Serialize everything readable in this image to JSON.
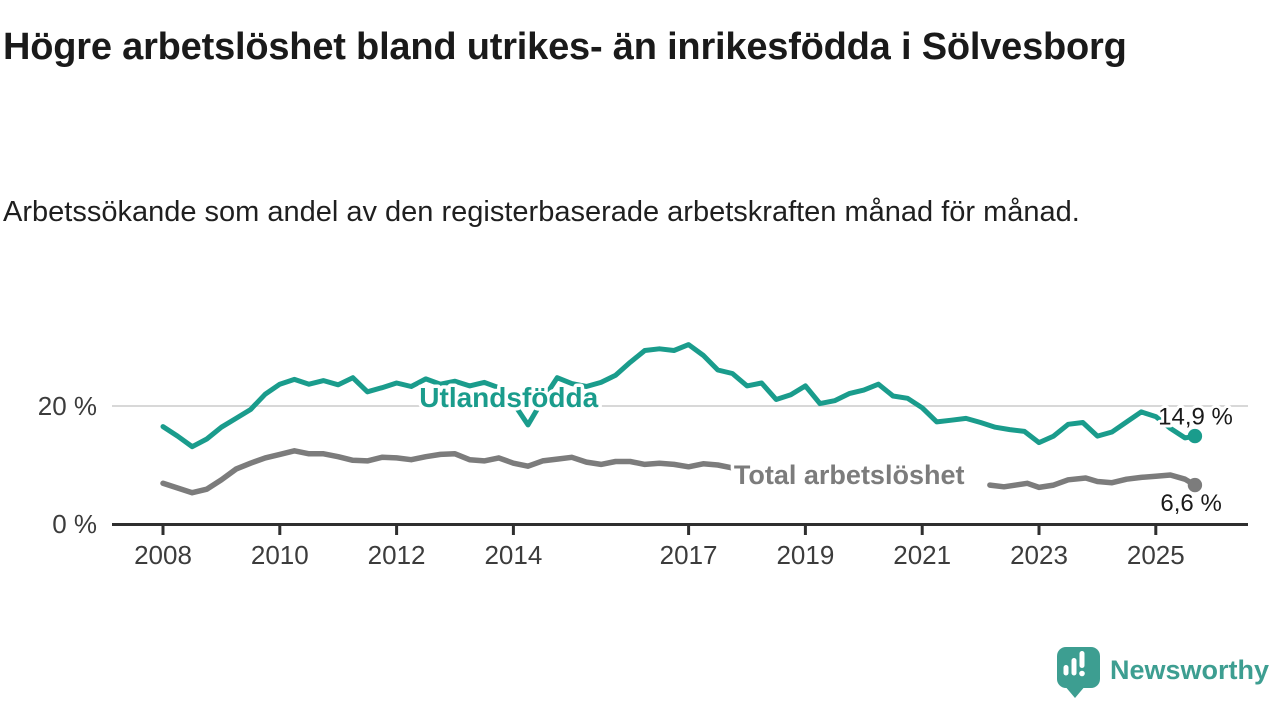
{
  "title": "Högre arbetslöshet bland utrikes- än inrikesfödda i Sölvesborg",
  "subtitle": "Arbetssökande som andel av den registerbaserade arbetskraften månad för månad.",
  "branding": {
    "logo_text": "Newsworthy",
    "logo_icon": "bar-chart-speech-bubble"
  },
  "colors": {
    "accent_teal": "#1a9c8c",
    "line_gray": "#7c7c7c",
    "axis": "#2f2f2f",
    "grid": "#cccccc",
    "chart_text": "#3c3c3c",
    "value_label": "#1a1a1a",
    "brand_teal": "#3d9e91"
  },
  "chart_data": {
    "type": "line",
    "title": "Högre arbetslöshet bland utrikes- än inrikesfödda i Sölvesborg",
    "subtitle": "Arbetssökande som andel av den registerbaserade arbetskraften månad för månad.",
    "grid": "single horizontal gridline at 20 %",
    "legend_position": "inline labels on lines",
    "x_range_years": [
      2007.13,
      2026.57
    ],
    "x_axis": {
      "ticks": [
        {
          "year": 2008,
          "label": "2008"
        },
        {
          "year": 2010,
          "label": "2010"
        },
        {
          "year": 2012,
          "label": "2012"
        },
        {
          "year": 2014,
          "label": "2014"
        },
        {
          "year": 2017,
          "label": "2017"
        },
        {
          "year": 2019,
          "label": "2019"
        },
        {
          "year": 2021,
          "label": "2021"
        },
        {
          "year": 2023,
          "label": "2023"
        },
        {
          "year": 2025,
          "label": "2025"
        }
      ]
    },
    "y_axis": {
      "unit": "%",
      "range": [
        0,
        32
      ],
      "ticks": [
        {
          "value": 20,
          "label": "20 %"
        },
        {
          "value": 0,
          "label": "0 %"
        }
      ]
    },
    "series": [
      {
        "name": "Utlandsfödda",
        "color": "#1a9c8c",
        "stroke_width": 5,
        "end_value": 14.9,
        "name_label": {
          "text": "Utlandsfödda",
          "year": 2013.92,
          "value": 19.8,
          "anchor": "middle",
          "font_size": 28
        },
        "end_label": {
          "text": "14,9 %",
          "year": 2026.32,
          "value": 16.9,
          "anchor": "end",
          "font_size": 24
        },
        "segments": [
          [
            [
              2008.0,
              16.5
            ],
            [
              2008.25,
              14.9
            ],
            [
              2008.5,
              13.1
            ],
            [
              2008.75,
              14.4
            ],
            [
              2009.0,
              16.4
            ],
            [
              2009.25,
              17.9
            ],
            [
              2009.5,
              19.4
            ],
            [
              2009.75,
              22.0
            ],
            [
              2010.0,
              23.7
            ],
            [
              2010.25,
              24.5
            ],
            [
              2010.5,
              23.7
            ],
            [
              2010.75,
              24.3
            ],
            [
              2011.0,
              23.6
            ],
            [
              2011.25,
              24.8
            ],
            [
              2011.5,
              22.4
            ],
            [
              2011.75,
              23.1
            ],
            [
              2012.0,
              23.9
            ],
            [
              2012.25,
              23.3
            ],
            [
              2012.5,
              24.6
            ],
            [
              2012.75,
              23.7
            ],
            [
              2013.0,
              24.2
            ],
            [
              2013.25,
              23.4
            ],
            [
              2013.5,
              24.0
            ],
            [
              2013.75,
              23.1
            ],
            [
              2014.0,
              20.5
            ],
            [
              2014.25,
              16.8
            ],
            [
              2014.5,
              21.0
            ],
            [
              2014.75,
              24.8
            ],
            [
              2015.0,
              23.8
            ],
            [
              2015.25,
              23.3
            ],
            [
              2015.5,
              24.0
            ],
            [
              2015.75,
              25.2
            ],
            [
              2016.0,
              27.4
            ],
            [
              2016.25,
              29.4
            ],
            [
              2016.5,
              29.7
            ],
            [
              2016.75,
              29.4
            ],
            [
              2017.0,
              30.4
            ],
            [
              2017.25,
              28.6
            ],
            [
              2017.5,
              26.1
            ],
            [
              2017.75,
              25.5
            ],
            [
              2018.0,
              23.4
            ],
            [
              2018.25,
              23.9
            ],
            [
              2018.5,
              21.1
            ],
            [
              2018.75,
              21.9
            ],
            [
              2019.0,
              23.4
            ],
            [
              2019.25,
              20.4
            ],
            [
              2019.5,
              20.9
            ],
            [
              2019.75,
              22.1
            ],
            [
              2020.0,
              22.7
            ],
            [
              2020.25,
              23.7
            ],
            [
              2020.5,
              21.7
            ],
            [
              2020.75,
              21.3
            ],
            [
              2021.0,
              19.7
            ],
            [
              2021.25,
              17.3
            ],
            [
              2021.5,
              17.6
            ],
            [
              2021.75,
              17.9
            ],
            [
              2022.0,
              17.2
            ],
            [
              2022.25,
              16.4
            ],
            [
              2022.5,
              16.0
            ],
            [
              2022.75,
              15.7
            ],
            [
              2023.0,
              13.8
            ],
            [
              2023.25,
              14.9
            ],
            [
              2023.5,
              16.9
            ],
            [
              2023.75,
              17.2
            ],
            [
              2024.0,
              14.9
            ],
            [
              2024.25,
              15.6
            ],
            [
              2024.5,
              17.3
            ],
            [
              2024.75,
              19.0
            ],
            [
              2025.0,
              18.2
            ],
            [
              2025.25,
              16.2
            ],
            [
              2025.5,
              14.6
            ],
            [
              2025.67,
              14.9
            ]
          ]
        ]
      },
      {
        "name": "Total arbetslöshet",
        "color": "#7c7c7c",
        "stroke_width": 5.5,
        "end_value": 6.6,
        "name_label": {
          "text": "Total arbetslöshet",
          "year": 2019.75,
          "value": 6.8,
          "anchor": "middle",
          "font_size": 27
        },
        "end_label": {
          "text": "6,6 %",
          "year": 2026.13,
          "value": 2.2,
          "anchor": "end",
          "font_size": 24
        },
        "segments": [
          [
            [
              2008.0,
              6.9
            ],
            [
              2008.25,
              6.1
            ],
            [
              2008.5,
              5.3
            ],
            [
              2008.75,
              5.9
            ],
            [
              2009.0,
              7.5
            ],
            [
              2009.25,
              9.3
            ],
            [
              2009.5,
              10.3
            ],
            [
              2009.75,
              11.2
            ],
            [
              2010.0,
              11.8
            ],
            [
              2010.25,
              12.4
            ],
            [
              2010.5,
              11.9
            ],
            [
              2010.75,
              11.9
            ],
            [
              2011.0,
              11.4
            ],
            [
              2011.25,
              10.8
            ],
            [
              2011.5,
              10.7
            ],
            [
              2011.75,
              11.3
            ],
            [
              2012.0,
              11.2
            ],
            [
              2012.25,
              10.9
            ],
            [
              2012.5,
              11.4
            ],
            [
              2012.75,
              11.8
            ],
            [
              2013.0,
              11.9
            ],
            [
              2013.25,
              10.9
            ],
            [
              2013.5,
              10.7
            ],
            [
              2013.75,
              11.2
            ],
            [
              2014.0,
              10.3
            ],
            [
              2014.25,
              9.8
            ],
            [
              2014.5,
              10.7
            ],
            [
              2014.75,
              11.0
            ],
            [
              2015.0,
              11.3
            ],
            [
              2015.25,
              10.5
            ],
            [
              2015.5,
              10.1
            ],
            [
              2015.75,
              10.6
            ],
            [
              2016.0,
              10.6
            ],
            [
              2016.25,
              10.1
            ],
            [
              2016.5,
              10.3
            ],
            [
              2016.75,
              10.1
            ],
            [
              2017.0,
              9.7
            ],
            [
              2017.25,
              10.2
            ],
            [
              2017.5,
              10.0
            ],
            [
              2017.75,
              9.5
            ],
            [
              2018.08,
              9.0
            ]
          ],
          [
            [
              2022.16,
              6.6
            ],
            [
              2022.4,
              6.3
            ],
            [
              2022.8,
              6.9
            ],
            [
              2023.0,
              6.2
            ],
            [
              2023.25,
              6.6
            ],
            [
              2023.5,
              7.5
            ],
            [
              2023.8,
              7.8
            ],
            [
              2024.0,
              7.2
            ],
            [
              2024.25,
              7.0
            ],
            [
              2024.5,
              7.6
            ],
            [
              2024.75,
              7.9
            ],
            [
              2025.0,
              8.1
            ],
            [
              2025.25,
              8.3
            ],
            [
              2025.5,
              7.6
            ],
            [
              2025.67,
              6.6
            ]
          ]
        ]
      }
    ]
  }
}
